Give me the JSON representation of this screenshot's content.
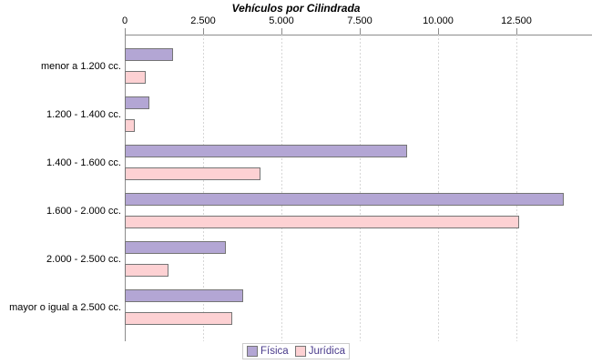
{
  "chart_data": {
    "type": "bar",
    "orientation": "horizontal",
    "title": "Vehículos por Cilindrada",
    "categories": [
      "menor a 1.200 cc.",
      "1.200 - 1.400 cc.",
      "1.400 - 1.600 cc.",
      "1.600 - 2.000 cc.",
      "2.000 - 2.500 cc.",
      "mayor o igual a 2.500 cc."
    ],
    "series": [
      {
        "name": "Física",
        "color": "#b3a6d4",
        "values": [
          1530,
          780,
          9000,
          14020,
          3240,
          3790
        ]
      },
      {
        "name": "Jurídica",
        "color": "#fdd1d3",
        "values": [
          670,
          310,
          4330,
          12600,
          1390,
          3440
        ]
      }
    ],
    "x_axis": {
      "position": "top",
      "ticks": [
        "0",
        "2.500",
        "5.000",
        "7.500",
        "10.000",
        "12.500"
      ],
      "tick_values": [
        0,
        2500,
        5000,
        7500,
        10000,
        12500
      ],
      "max": 14900
    },
    "grid": "dashed-vertical",
    "legend_position": "bottom",
    "colors": {
      "fisica": "#b3a6d4",
      "juridica": "#fdd1d3",
      "bar_border": "#757575",
      "axis": "#8c8c8c",
      "legend_text": "#4a3b8c"
    }
  }
}
